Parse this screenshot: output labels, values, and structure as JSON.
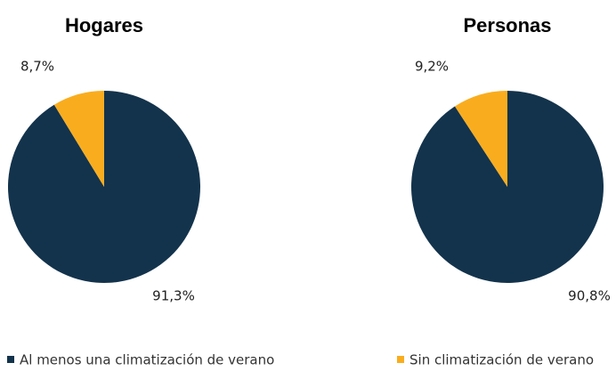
{
  "chart_data": [
    {
      "type": "pie",
      "title": "Hogares",
      "categories": [
        "Al menos una climatización de verano",
        "Sin climatización de verano"
      ],
      "values": [
        91.3,
        8.7
      ],
      "value_labels": [
        "91,3%",
        "8,7%"
      ],
      "colors": [
        "#13334c",
        "#f9ad1e"
      ]
    },
    {
      "type": "pie",
      "title": "Personas",
      "categories": [
        "Al menos una climatización de verano",
        "Sin climatización de verano"
      ],
      "values": [
        90.8,
        9.2
      ],
      "value_labels": [
        "90,8%",
        "9,2%"
      ],
      "colors": [
        "#13334c",
        "#f9ad1e"
      ]
    }
  ]
}
